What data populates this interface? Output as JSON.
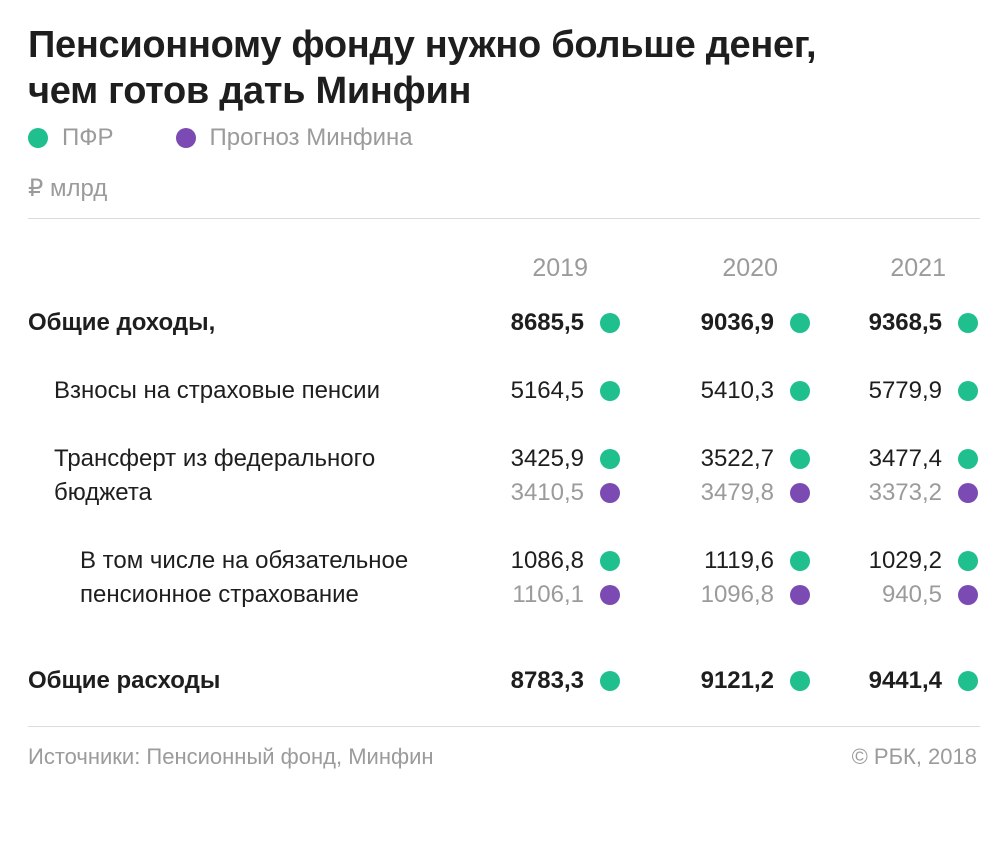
{
  "title_line1": "Пенсионному фонду нужно больше денег,",
  "title_line2": "чем готов дать Минфин",
  "legend": [
    {
      "label": "ПФР",
      "color": "#1fc08e"
    },
    {
      "label": "Прогноз Минфина",
      "color": "#7b4bb3"
    }
  ],
  "unit": "₽ млрд",
  "footer": {
    "source": "Источники: Пенсионный фонд, Минфин",
    "copyright": "© РБК, 2018"
  },
  "chart_data": {
    "type": "table",
    "columns": [
      "2019",
      "2020",
      "2021"
    ],
    "rows": [
      {
        "label_lines": [
          "Общие доходы,"
        ],
        "bold": true,
        "series": [
          {
            "source": "ПФР",
            "values": [
              "8685,5",
              "9036,9",
              "9368,5"
            ]
          }
        ]
      },
      {
        "label_lines": [
          "Взносы на страховые пенсии"
        ],
        "bold": false,
        "series": [
          {
            "source": "ПФР",
            "values": [
              "5164,5",
              "5410,3",
              "5779,9"
            ]
          }
        ]
      },
      {
        "label_lines": [
          "Трансферт из федерального",
          "бюджета"
        ],
        "bold": false,
        "series": [
          {
            "source": "ПФР",
            "values": [
              "3425,9",
              "3522,7",
              "3477,4"
            ]
          },
          {
            "source": "Прогноз Минфина",
            "values": [
              "3410,5",
              "3479,8",
              "3373,2"
            ]
          }
        ]
      },
      {
        "label_lines": [
          "В том числе на обязательное",
          "пенсионное страхование"
        ],
        "bold": false,
        "series": [
          {
            "source": "ПФР",
            "values": [
              "1086,8",
              "1119,6",
              "1029,2"
            ]
          },
          {
            "source": "Прогноз Минфина",
            "values": [
              "1106,1",
              "1096,8",
              "940,5"
            ]
          }
        ]
      },
      {
        "label_lines": [
          "Общие расходы"
        ],
        "bold": true,
        "series": [
          {
            "source": "ПФР",
            "values": [
              "8783,3",
              "9121,2",
              "9441,4"
            ]
          }
        ]
      }
    ]
  }
}
